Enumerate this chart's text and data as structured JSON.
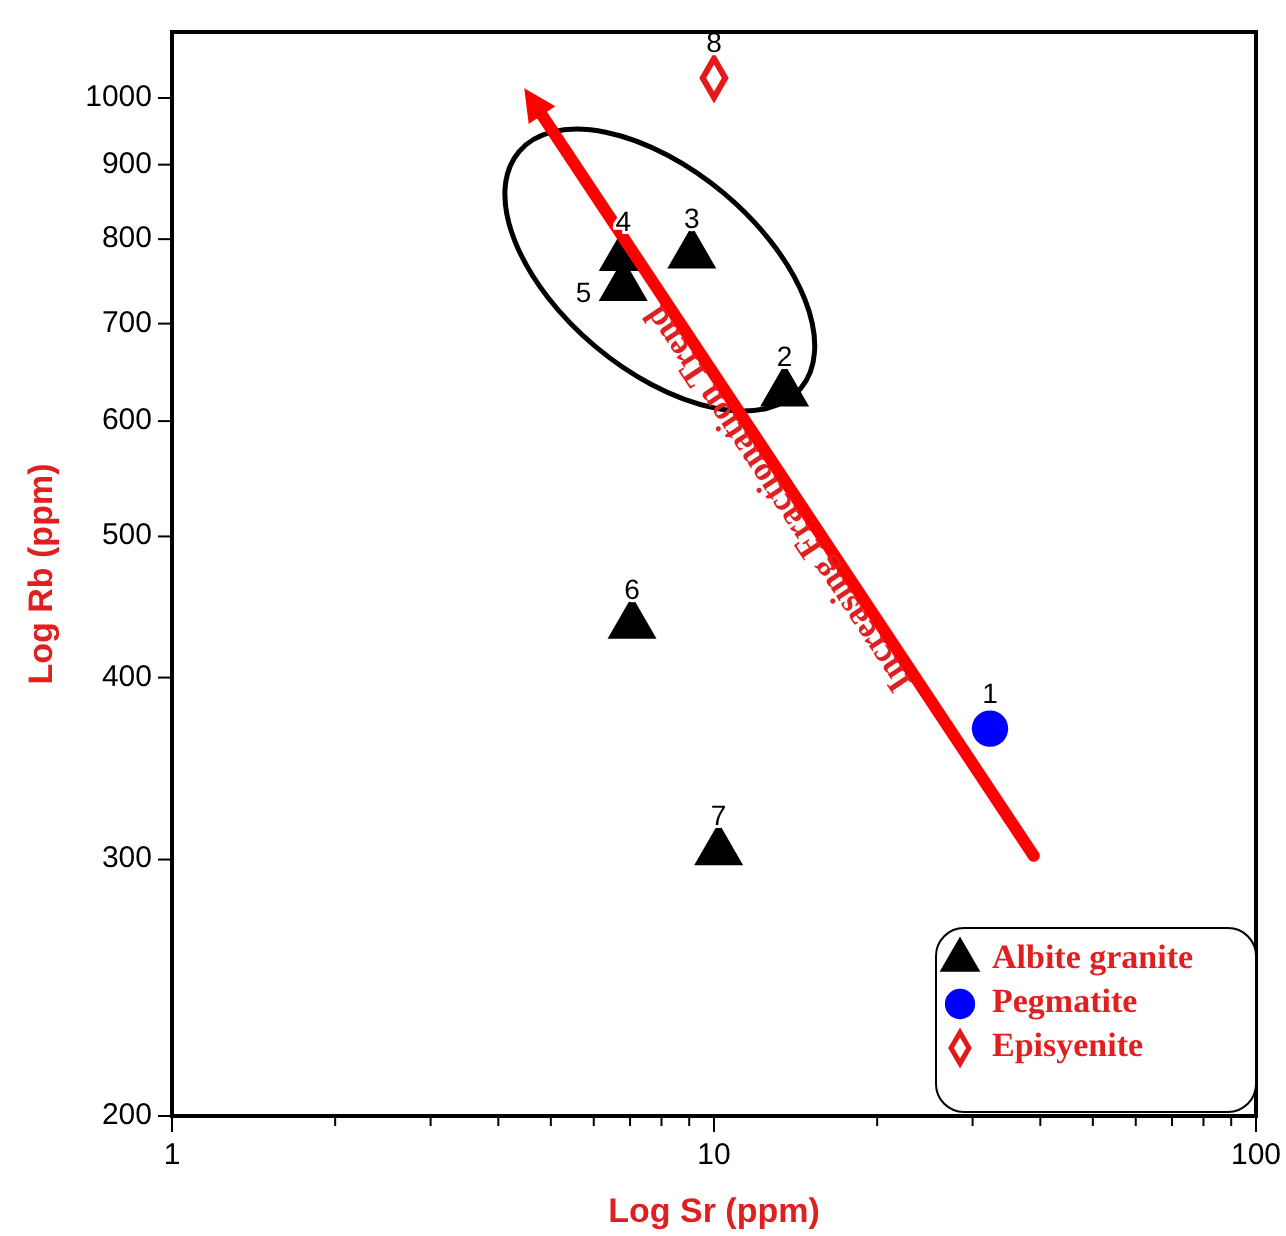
{
  "chart_data": {
    "type": "scatter",
    "xlabel": "Log Sr (ppm)",
    "ylabel": "Log Rb (ppm)",
    "log": "xy",
    "xlim": [
      1,
      100
    ],
    "ylim": [
      200,
      1110
    ],
    "xticks": [
      1,
      {
        "value": 2,
        "label": null
      },
      {
        "value": 3,
        "label": null
      },
      {
        "value": 4,
        "label": null
      },
      {
        "value": 5,
        "label": null
      },
      {
        "value": 6,
        "label": null
      },
      {
        "value": 7,
        "label": null
      },
      {
        "value": 8,
        "label": null
      },
      {
        "value": 9,
        "label": null
      },
      10,
      {
        "value": 20,
        "label": null
      },
      {
        "value": 30,
        "label": null
      },
      {
        "value": 40,
        "label": null
      },
      {
        "value": 50,
        "label": null
      },
      {
        "value": 60,
        "label": null
      },
      {
        "value": 70,
        "label": null
      },
      {
        "value": 80,
        "label": null
      },
      {
        "value": 90,
        "label": null
      },
      100
    ],
    "yticks": [
      200,
      300,
      400,
      500,
      600,
      700,
      800,
      900,
      1000
    ],
    "grid": false,
    "legend": "bottom right",
    "series": [
      {
        "name": "Albite granite",
        "marker": "triangle",
        "color": "#000000",
        "x": [
          13.5,
          9.1,
          6.8,
          6.8,
          7.06,
          10.2
        ],
        "values": [
          628,
          781,
          778,
          742,
          435,
          304
        ]
      },
      {
        "name": "Pegmatite",
        "marker": "circle",
        "color": "#0000ff",
        "x": [
          32.3
        ],
        "values": [
          369
        ]
      },
      {
        "name": "Episyenite",
        "marker": "diamond",
        "color": "#e41a1a",
        "x": [
          10
        ],
        "values": [
          1032
        ]
      }
    ],
    "annotations": [
      {
        "text": "1",
        "x": 32.3,
        "y": 369
      },
      {
        "text": "2",
        "x": 13.5,
        "y": 628
      },
      {
        "text": "3",
        "x": 9.1,
        "y": 781
      },
      {
        "text": "4",
        "x": 6.8,
        "y": 778
      },
      {
        "text": "5",
        "x": 6.8,
        "y": 742
      },
      {
        "text": "6",
        "x": 7.06,
        "y": 435
      },
      {
        "text": "7",
        "x": 10.2,
        "y": 304
      },
      {
        "text": "8",
        "x": 10,
        "y": 1032
      },
      "Increasing Fractionation Trend"
    ]
  }
}
